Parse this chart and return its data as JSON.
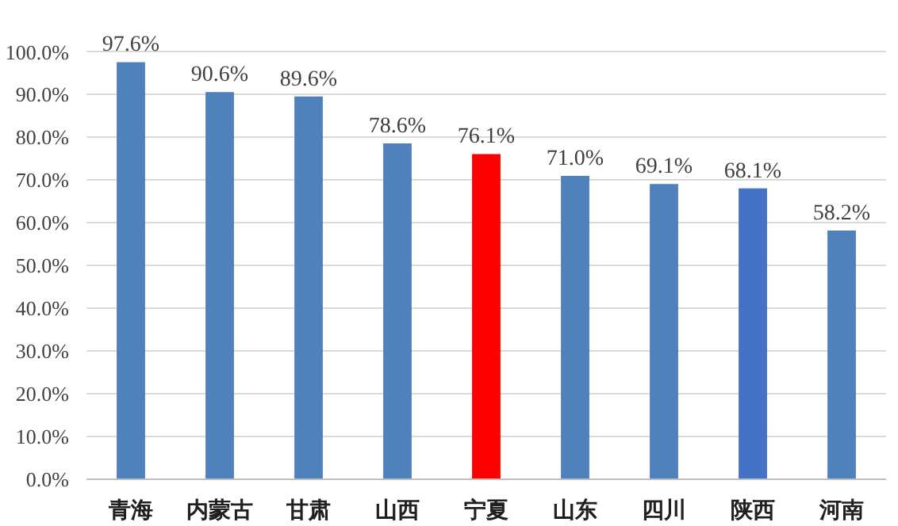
{
  "chart_data": {
    "type": "bar",
    "categories": [
      "青海",
      "内蒙古",
      "甘肃",
      "山西",
      "宁夏",
      "山东",
      "四川",
      "陕西",
      "河南"
    ],
    "values": [
      97.6,
      90.6,
      89.6,
      78.6,
      76.1,
      71.0,
      69.1,
      68.1,
      58.2
    ],
    "colors": [
      "#4f81bd",
      "#4f81bd",
      "#4f81bd",
      "#4f81bd",
      "#ff0000",
      "#4f81bd",
      "#4f81bd",
      "#4472c4",
      "#4f81bd"
    ],
    "value_labels": [
      "97.6%",
      "90.6%",
      "89.6%",
      "78.6%",
      "76.1%",
      "71.0%",
      "69.1%",
      "68.1%",
      "58.2%"
    ],
    "ylim": [
      0,
      100
    ],
    "yticks": [
      {
        "value": 0,
        "label": "0.0%"
      },
      {
        "value": 10,
        "label": "10.0%"
      },
      {
        "value": 20,
        "label": "20.0%"
      },
      {
        "value": 30,
        "label": "30.0%"
      },
      {
        "value": 40,
        "label": "40.0%"
      },
      {
        "value": 50,
        "label": "50.0%"
      },
      {
        "value": 60,
        "label": "60.0%"
      },
      {
        "value": 70,
        "label": "70.0%"
      },
      {
        "value": 80,
        "label": "80.0%"
      },
      {
        "value": 90,
        "label": "90.0%"
      },
      {
        "value": 100,
        "label": "100.0%"
      }
    ],
    "grid": "y"
  }
}
